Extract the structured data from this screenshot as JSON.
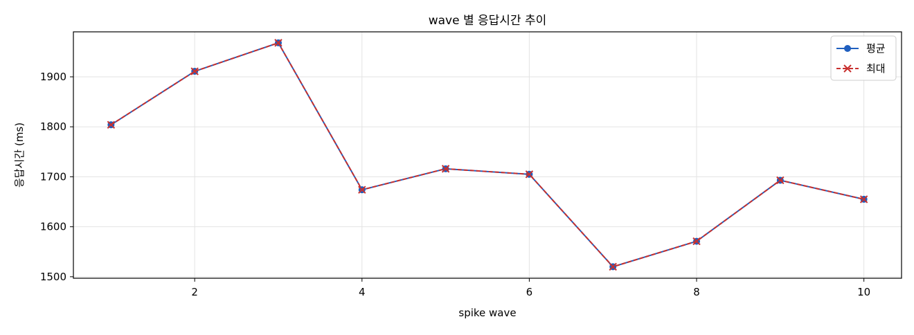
{
  "chart_data": {
    "type": "line",
    "title": "wave 별 응답시간 추이",
    "xlabel": "spike wave",
    "ylabel": "응답시간 (ms)",
    "x": [
      1,
      2,
      3,
      4,
      5,
      6,
      7,
      8,
      9,
      10
    ],
    "series": [
      {
        "name": "평균",
        "values": [
          1804,
          1911,
          1968,
          1674,
          1716,
          1705,
          1520,
          1571,
          1693,
          1655
        ],
        "color": "#1f5fbf",
        "marker": "circle",
        "linestyle": "solid"
      },
      {
        "name": "최대",
        "values": [
          1804,
          1911,
          1968,
          1674,
          1716,
          1705,
          1520,
          1571,
          1693,
          1655
        ],
        "color": "#c8302e",
        "marker": "x",
        "linestyle": "dashed"
      }
    ],
    "xlim": [
      0.55,
      10.45
    ],
    "ylim": [
      1497,
      1990
    ],
    "xticks": [
      2,
      4,
      6,
      8,
      10
    ],
    "yticks": [
      1500,
      1600,
      1700,
      1800,
      1900
    ],
    "grid": true,
    "legend_position": "top-right"
  }
}
